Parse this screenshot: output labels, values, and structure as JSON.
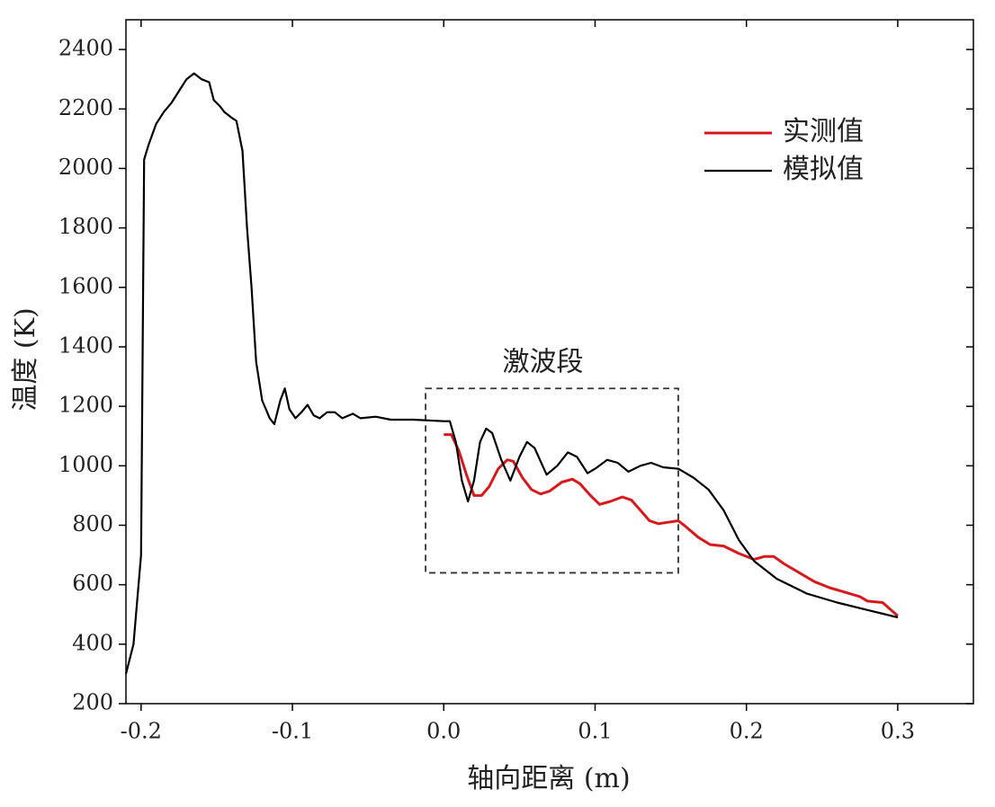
{
  "chart_data": {
    "type": "line",
    "xlabel": "轴向距离 (m)",
    "ylabel": "温度 (K)",
    "xlim": [
      -0.21,
      0.35
    ],
    "ylim": [
      200,
      2500
    ],
    "xticks": [
      -0.2,
      -0.1,
      {
        "value": 0,
        "label": "0.0"
      },
      0.1,
      0.2,
      0.3
    ],
    "yticks": [
      200,
      400,
      600,
      800,
      1000,
      1200,
      1400,
      1600,
      1800,
      2000,
      2200,
      2400
    ],
    "legend": "upper right",
    "annotation": {
      "text": "激波段",
      "x": [
        -0.012,
        0.155
      ],
      "y": [
        640,
        1260
      ]
    },
    "series": [
      {
        "name": "实测值",
        "color": "#d7191c",
        "x": [
          0,
          0.005,
          0.01,
          0.015,
          0.02,
          0.025,
          0.03,
          0.036,
          0.042,
          0.046,
          0.052,
          0.058,
          0.064,
          0.07,
          0.078,
          0.085,
          0.09,
          0.097,
          0.103,
          0.11,
          0.118,
          0.124,
          0.13,
          0.136,
          0.142,
          0.148,
          0.155,
          0.16,
          0.168,
          0.176,
          0.185,
          0.195,
          0.205,
          0.212,
          0.218,
          0.225,
          0.235,
          0.245,
          0.255,
          0.265,
          0.275,
          0.28,
          0.29,
          0.3
        ],
        "values": [
          1105,
          1105,
          1050,
          970,
          900,
          900,
          930,
          990,
          1020,
          1015,
          960,
          920,
          905,
          915,
          945,
          955,
          940,
          900,
          870,
          880,
          895,
          885,
          850,
          815,
          805,
          810,
          815,
          795,
          760,
          735,
          730,
          705,
          685,
          695,
          695,
          670,
          640,
          610,
          590,
          575,
          560,
          545,
          540,
          495
        ]
      },
      {
        "name": "模拟值",
        "color": "#000000",
        "x": [
          -0.21,
          -0.205,
          -0.2,
          -0.198,
          -0.195,
          -0.19,
          -0.185,
          -0.18,
          -0.175,
          -0.17,
          -0.165,
          -0.16,
          -0.155,
          -0.152,
          -0.148,
          -0.145,
          -0.14,
          -0.137,
          -0.133,
          -0.13,
          -0.127,
          -0.124,
          -0.12,
          -0.115,
          -0.112,
          -0.108,
          -0.105,
          -0.102,
          -0.098,
          -0.094,
          -0.09,
          -0.086,
          -0.082,
          -0.077,
          -0.072,
          -0.067,
          -0.06,
          -0.055,
          -0.045,
          -0.035,
          -0.02,
          0,
          0.004,
          0.008,
          0.012,
          0.016,
          0.02,
          0.024,
          0.028,
          0.032,
          0.038,
          0.044,
          0.05,
          0.055,
          0.06,
          0.068,
          0.075,
          0.082,
          0.088,
          0.095,
          0.1,
          0.108,
          0.115,
          0.122,
          0.13,
          0.137,
          0.145,
          0.155,
          0.165,
          0.175,
          0.185,
          0.195,
          0.205,
          0.22,
          0.24,
          0.26,
          0.28,
          0.3
        ],
        "values": [
          300,
          400,
          700,
          2030,
          2080,
          2150,
          2190,
          2220,
          2260,
          2300,
          2320,
          2300,
          2290,
          2230,
          2210,
          2190,
          2170,
          2160,
          2060,
          1800,
          1600,
          1350,
          1220,
          1160,
          1140,
          1220,
          1260,
          1190,
          1160,
          1180,
          1205,
          1170,
          1160,
          1180,
          1180,
          1160,
          1175,
          1160,
          1165,
          1155,
          1155,
          1150,
          1150,
          1080,
          950,
          880,
          950,
          1080,
          1125,
          1110,
          1020,
          950,
          1030,
          1080,
          1060,
          970,
          1000,
          1045,
          1030,
          975,
          990,
          1020,
          1010,
          980,
          1000,
          1010,
          995,
          990,
          960,
          920,
          850,
          750,
          680,
          620,
          570,
          540,
          515,
          490
        ]
      }
    ]
  }
}
